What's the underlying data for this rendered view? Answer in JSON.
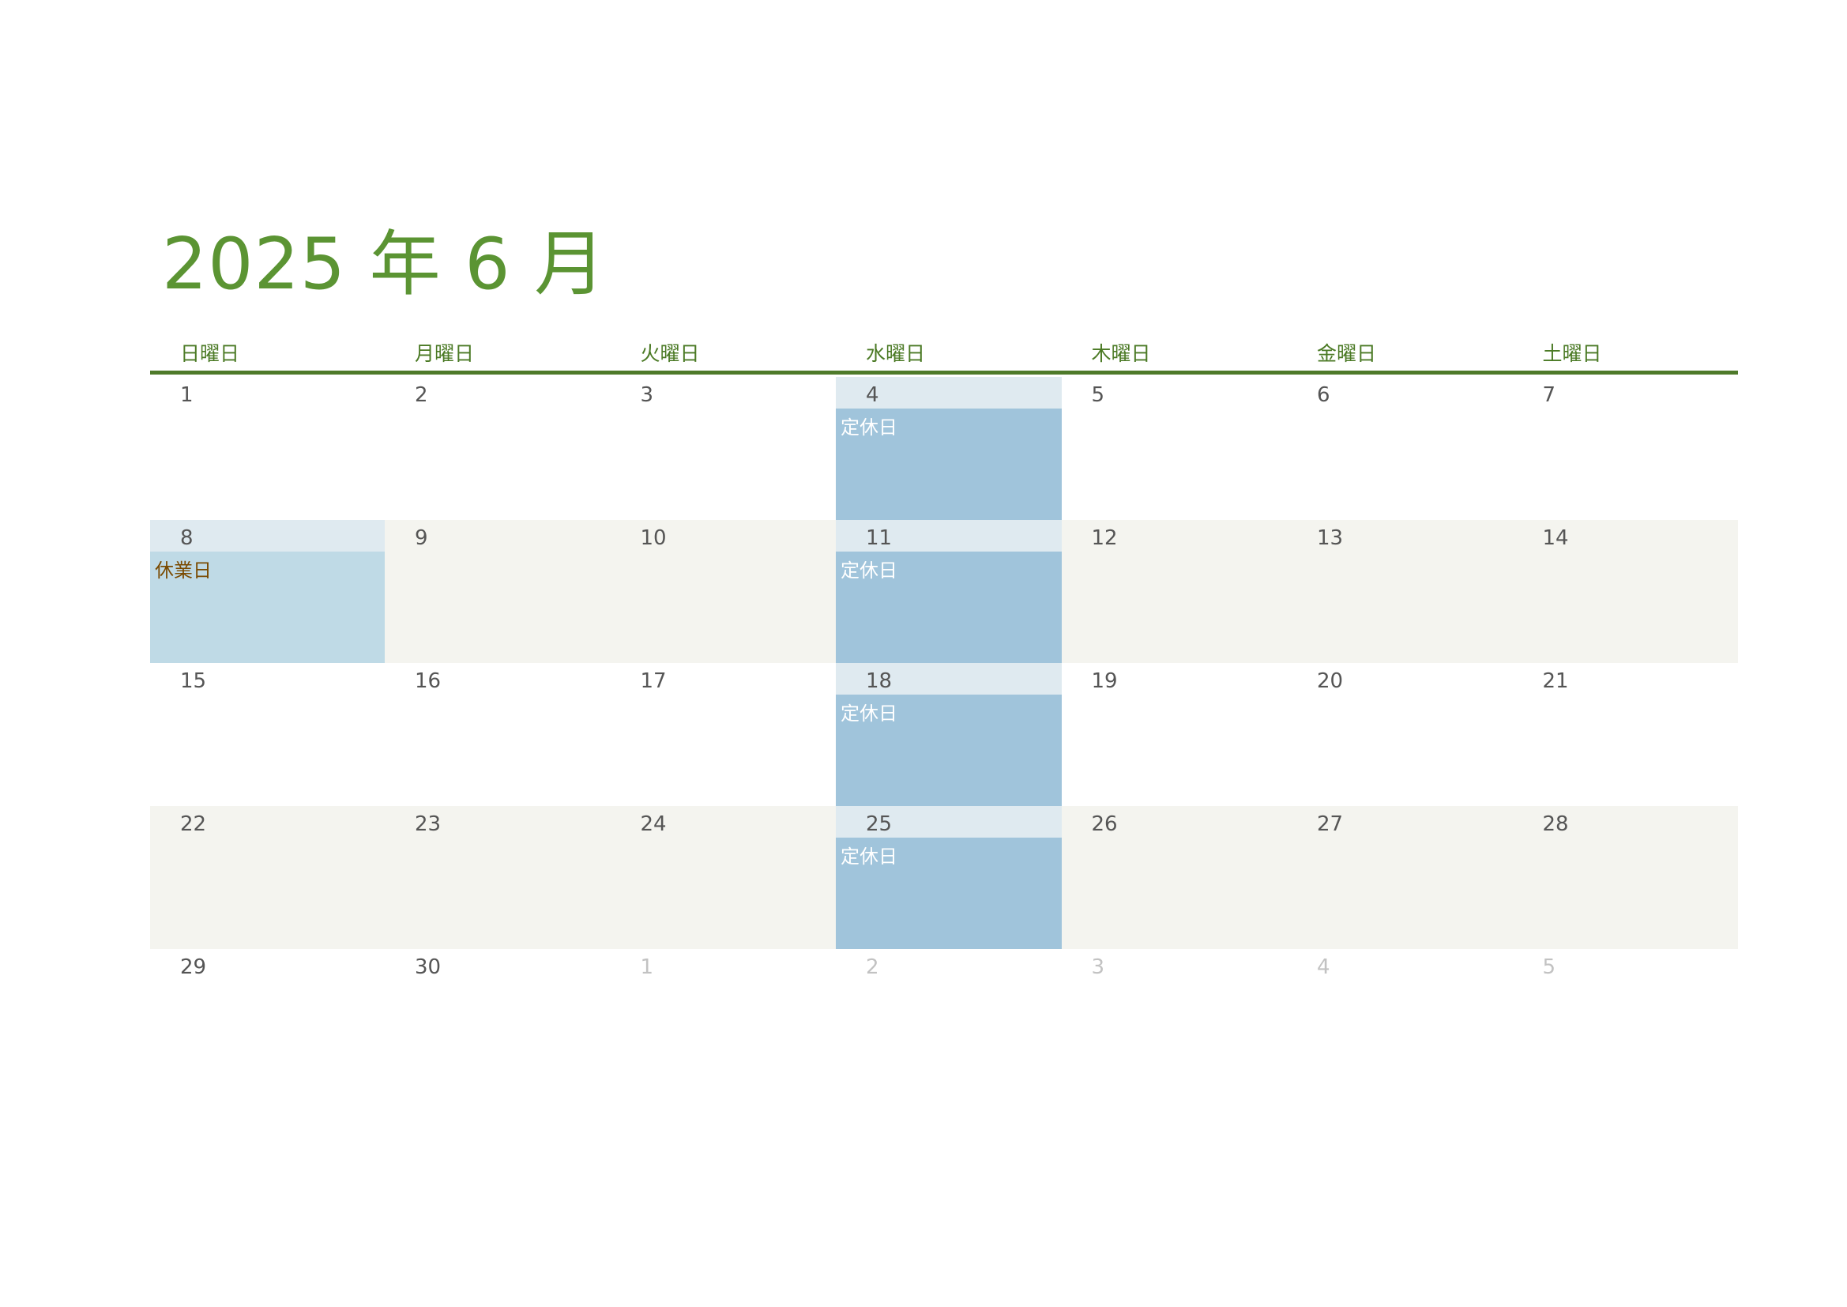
{
  "title": "2025 年 6 月",
  "weekdays": [
    "日曜日",
    "月曜日",
    "火曜日",
    "水曜日",
    "木曜日",
    "金曜日",
    "土曜日"
  ],
  "colors": {
    "title": "#5b9433",
    "rule": "#4e7a2a",
    "alt_row": "#f4f4ef",
    "closed_day": "#a0c4db",
    "holiday": "#bfdae6"
  },
  "weeks": [
    [
      {
        "d": "1"
      },
      {
        "d": "2"
      },
      {
        "d": "3"
      },
      {
        "d": "4",
        "note": "定休日",
        "type": "closed"
      },
      {
        "d": "5"
      },
      {
        "d": "6"
      },
      {
        "d": "7"
      }
    ],
    [
      {
        "d": "8",
        "note": "休業日",
        "type": "holiday"
      },
      {
        "d": "9"
      },
      {
        "d": "10"
      },
      {
        "d": "11",
        "note": "定休日",
        "type": "closed"
      },
      {
        "d": "12"
      },
      {
        "d": "13"
      },
      {
        "d": "14"
      }
    ],
    [
      {
        "d": "15"
      },
      {
        "d": "16"
      },
      {
        "d": "17"
      },
      {
        "d": "18",
        "note": "定休日",
        "type": "closed"
      },
      {
        "d": "19"
      },
      {
        "d": "20"
      },
      {
        "d": "21"
      }
    ],
    [
      {
        "d": "22"
      },
      {
        "d": "23"
      },
      {
        "d": "24"
      },
      {
        "d": "25",
        "note": "定休日",
        "type": "closed"
      },
      {
        "d": "26"
      },
      {
        "d": "27"
      },
      {
        "d": "28"
      }
    ],
    [
      {
        "d": "29"
      },
      {
        "d": "30"
      },
      {
        "d": "1",
        "other": true
      },
      {
        "d": "2",
        "other": true
      },
      {
        "d": "3",
        "other": true
      },
      {
        "d": "4",
        "other": true
      },
      {
        "d": "5",
        "other": true
      }
    ]
  ]
}
